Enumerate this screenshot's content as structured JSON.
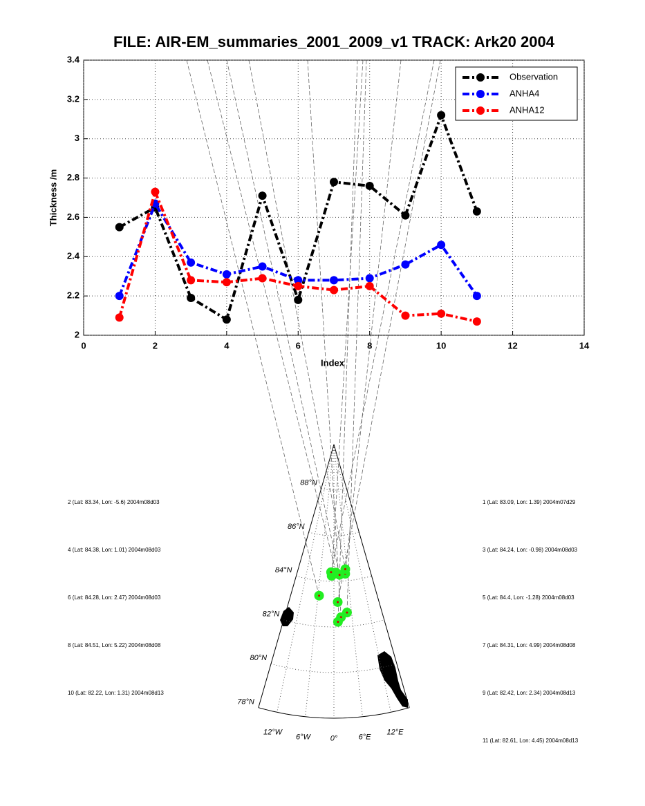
{
  "chart_data": {
    "type": "line",
    "title": "FILE: AIR-EM_summaries_2001_2009_v1 TRACK: Ark20 2004",
    "xlabel": "Index",
    "ylabel": "Thickness /m",
    "x": [
      1,
      2,
      3,
      4,
      5,
      6,
      7,
      8,
      9,
      10,
      11
    ],
    "series": [
      {
        "name": "Observation",
        "color": "#000000",
        "values": [
          2.55,
          2.65,
          2.19,
          2.08,
          2.71,
          2.18,
          2.78,
          2.76,
          2.61,
          3.12,
          2.63
        ]
      },
      {
        "name": "ANHA4",
        "color": "#0000ff",
        "values": [
          2.2,
          2.67,
          2.37,
          2.31,
          2.35,
          2.28,
          2.28,
          2.29,
          2.36,
          2.46,
          2.2
        ]
      },
      {
        "name": "ANHA12",
        "color": "#ff0000",
        "values": [
          2.09,
          2.73,
          2.28,
          2.27,
          2.29,
          2.25,
          2.23,
          2.25,
          2.1,
          2.11,
          2.07
        ]
      }
    ],
    "xlim": [
      0,
      14
    ],
    "xticks": [
      0,
      2,
      4,
      6,
      8,
      10,
      12,
      14
    ],
    "ylim": [
      2,
      3.4
    ],
    "yticks": [
      2,
      2.2,
      2.4,
      2.6,
      2.8,
      3,
      3.2,
      3.4
    ],
    "grid": true,
    "legend": "upper right"
  },
  "map": {
    "parallels": [
      {
        "value": 88,
        "label": "88°N"
      },
      {
        "value": 86,
        "label": "86°N"
      },
      {
        "value": 84,
        "label": "84°N"
      },
      {
        "value": 82,
        "label": "82°N"
      },
      {
        "value": 80,
        "label": "80°N"
      },
      {
        "value": 78,
        "label": "78°N"
      }
    ],
    "meridians": [
      {
        "value": -12,
        "label": "12°W"
      },
      {
        "value": -6,
        "label": "6°W"
      },
      {
        "value": 0,
        "label": "0°"
      },
      {
        "value": 6,
        "label": "6°E"
      },
      {
        "value": 12,
        "label": "12°E"
      }
    ],
    "points": [
      {
        "label": "1 (Lat: 83.09, Lon: 1.39) 2004m07d29",
        "lat": 83.09,
        "lon": 1.39
      },
      {
        "label": "2 (Lat: 83.34, Lon: -5.6) 2004m08d03",
        "lat": 83.34,
        "lon": -5.6
      },
      {
        "label": "3 (Lat: 84.24, Lon: -0.98) 2004m08d03",
        "lat": 84.24,
        "lon": -0.98
      },
      {
        "label": "4 (Lat: 84.38, Lon: 1.01) 2004m08d03",
        "lat": 84.38,
        "lon": 1.01
      },
      {
        "label": "5 (Lat: 84.4, Lon: -1.28) 2004m08d03",
        "lat": 84.4,
        "lon": -1.28
      },
      {
        "label": "6 (Lat: 84.28, Lon: 2.47) 2004m08d03",
        "lat": 84.28,
        "lon": 2.47
      },
      {
        "label": "7 (Lat: 84.31, Lon: 4.99) 2004m08d08",
        "lat": 84.31,
        "lon": 4.99
      },
      {
        "label": "8 (Lat: 84.51, Lon: 5.22) 2004m08d08",
        "lat": 84.51,
        "lon": 5.22
      },
      {
        "label": "9 (Lat: 82.42, Lon: 2.34) 2004m08d13",
        "lat": 82.42,
        "lon": 2.34
      },
      {
        "label": "10 (Lat: 82.22, Lon: 1.31) 2004m08d13",
        "lat": 82.22,
        "lon": 1.31
      },
      {
        "label": "11 (Lat: 82.61, Lon: 4.45) 2004m08d13",
        "lat": 82.61,
        "lon": 4.45
      }
    ]
  }
}
